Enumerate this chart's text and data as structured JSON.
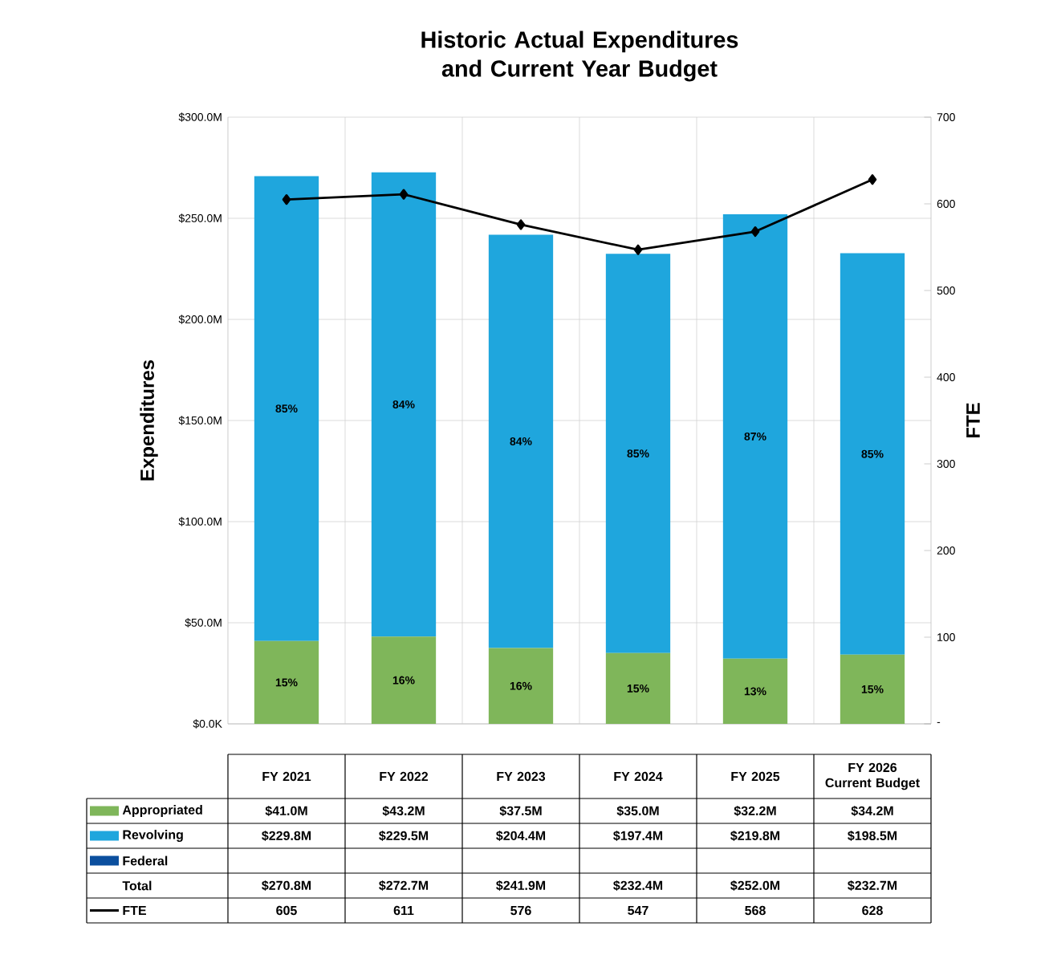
{
  "chart_data": {
    "type": "bar",
    "title": "Historic Actual Expenditures and Current Year Budget",
    "ylabel": "Expenditures",
    "y2label": "FTE",
    "categories": [
      "FY 2021",
      "FY 2022",
      "FY 2023",
      "FY 2024",
      "FY 2025",
      "FY 2026 Current Budget"
    ],
    "stacked": true,
    "grid": true,
    "legend": "bottom",
    "series": [
      {
        "name": "Appropriated",
        "color": "#7fb65a",
        "values": [
          41.0,
          43.2,
          37.5,
          35.0,
          32.2,
          34.2
        ],
        "value_labels": [
          "$41.0M",
          "$43.2M",
          "$37.5M",
          "$35.0M",
          "$32.2M",
          "$34.2M"
        ]
      },
      {
        "name": "Revolving",
        "color": "#1fa6dd",
        "values": [
          229.8,
          229.5,
          204.4,
          197.4,
          219.8,
          198.5
        ],
        "value_labels": [
          "$229.8M",
          "$229.5M",
          "$204.4M",
          "$197.4M",
          "$219.8M",
          "$198.5M"
        ]
      },
      {
        "name": "Federal",
        "color": "#0b4f9e",
        "values": [
          null,
          null,
          null,
          null,
          null,
          null
        ]
      },
      {
        "name": "FTE",
        "type": "line",
        "axis": "y2",
        "color": "#000000",
        "marker": "diamond",
        "line_style": "solid",
        "values": [
          605,
          611,
          576,
          547,
          568,
          628
        ],
        "value_labels": [
          "605",
          "611",
          "576",
          "547",
          "568",
          "628"
        ]
      }
    ],
    "ylim": [
      0,
      300
    ],
    "yticks": [
      {
        "value": 0,
        "label": "$0.0K"
      },
      {
        "value": 50,
        "label": "$50.0M"
      },
      {
        "value": 100,
        "label": "$100.0M"
      },
      {
        "value": 150,
        "label": "$150.0M"
      },
      {
        "value": 200,
        "label": "$200.0M"
      },
      {
        "value": 250,
        "label": "$250.0M"
      },
      {
        "value": 300,
        "label": "$300.0M"
      }
    ],
    "y2lim": [
      0,
      700
    ],
    "y2ticks": [
      {
        "value": 0,
        "label": "-"
      },
      100,
      200,
      300,
      400,
      500,
      600,
      700
    ],
    "annotations": [
      "Total",
      "$270.8M",
      "$272.7M",
      "$241.9M",
      "$232.4M",
      "$252.0M",
      "$232.7M",
      "15%",
      "85%",
      "16%",
      "84%",
      "16%",
      "84%",
      "15%",
      "85%",
      "13%",
      "87%",
      "15%",
      "85%"
    ]
  }
}
